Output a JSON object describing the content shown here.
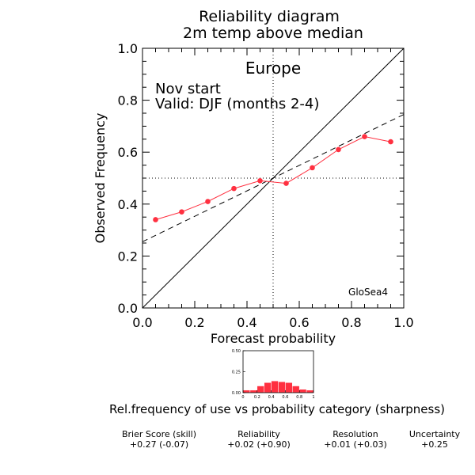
{
  "chart_data": [
    {
      "type": "line",
      "title": "Reliability diagram",
      "subtitle": "2m temp above median",
      "xlabel": "Forecast probability",
      "ylabel": "Observed Frequency",
      "xlim": [
        0,
        1
      ],
      "ylim": [
        0,
        1
      ],
      "xticks": [
        "0.0",
        "0.2",
        "0.4",
        "0.6",
        "0.8",
        "1.0"
      ],
      "yticks": [
        "0.0",
        "0.2",
        "0.4",
        "0.6",
        "0.8",
        "1.0"
      ],
      "region": "Europe",
      "annotation_line1": "Nov start",
      "annotation_line2": "Valid: DJF (months 2-4)",
      "model": "GloSea4",
      "reference_lines": {
        "perfect": {
          "x": [
            0,
            1
          ],
          "y": [
            0,
            1
          ]
        },
        "regression": {
          "x": [
            0,
            1
          ],
          "y": [
            0.255,
            0.745
          ]
        },
        "climatology_x": 0.5,
        "climatology_y": 0.5
      },
      "series": [
        {
          "color": "#ff3040",
          "x": [
            0.05,
            0.15,
            0.25,
            0.35,
            0.45,
            0.55,
            0.65,
            0.75,
            0.85,
            0.95
          ],
          "y": [
            0.34,
            0.37,
            0.41,
            0.46,
            0.49,
            0.48,
            0.54,
            0.61,
            0.66,
            0.64
          ]
        }
      ]
    },
    {
      "type": "bar",
      "caption": "Rel.frequency of use vs probability category (sharpness)",
      "xlim": [
        0,
        1
      ],
      "ylim": [
        0,
        0.5
      ],
      "xticks": [
        "0",
        "0.2",
        "0.4",
        "0.6",
        "0.8",
        "1"
      ],
      "yticks": [
        "0.00",
        "0.25",
        "0.50"
      ],
      "color": "#ff3040",
      "categories": [
        0.05,
        0.15,
        0.25,
        0.35,
        0.45,
        0.55,
        0.65,
        0.75,
        0.85,
        0.95
      ],
      "values": [
        0.03,
        0.03,
        0.08,
        0.12,
        0.14,
        0.13,
        0.12,
        0.08,
        0.04,
        0.03
      ]
    }
  ],
  "scores": {
    "brier": {
      "label": "Brier Score (skill)",
      "value": "+0.27  (-0.07)"
    },
    "reliability": {
      "label": "Reliability",
      "value": "+0.02  (+0.90)"
    },
    "resolution": {
      "label": "Resolution",
      "value": "+0.01  (+0.03)"
    },
    "uncertainty": {
      "label": "Uncertainty",
      "value": "+0.25"
    }
  }
}
